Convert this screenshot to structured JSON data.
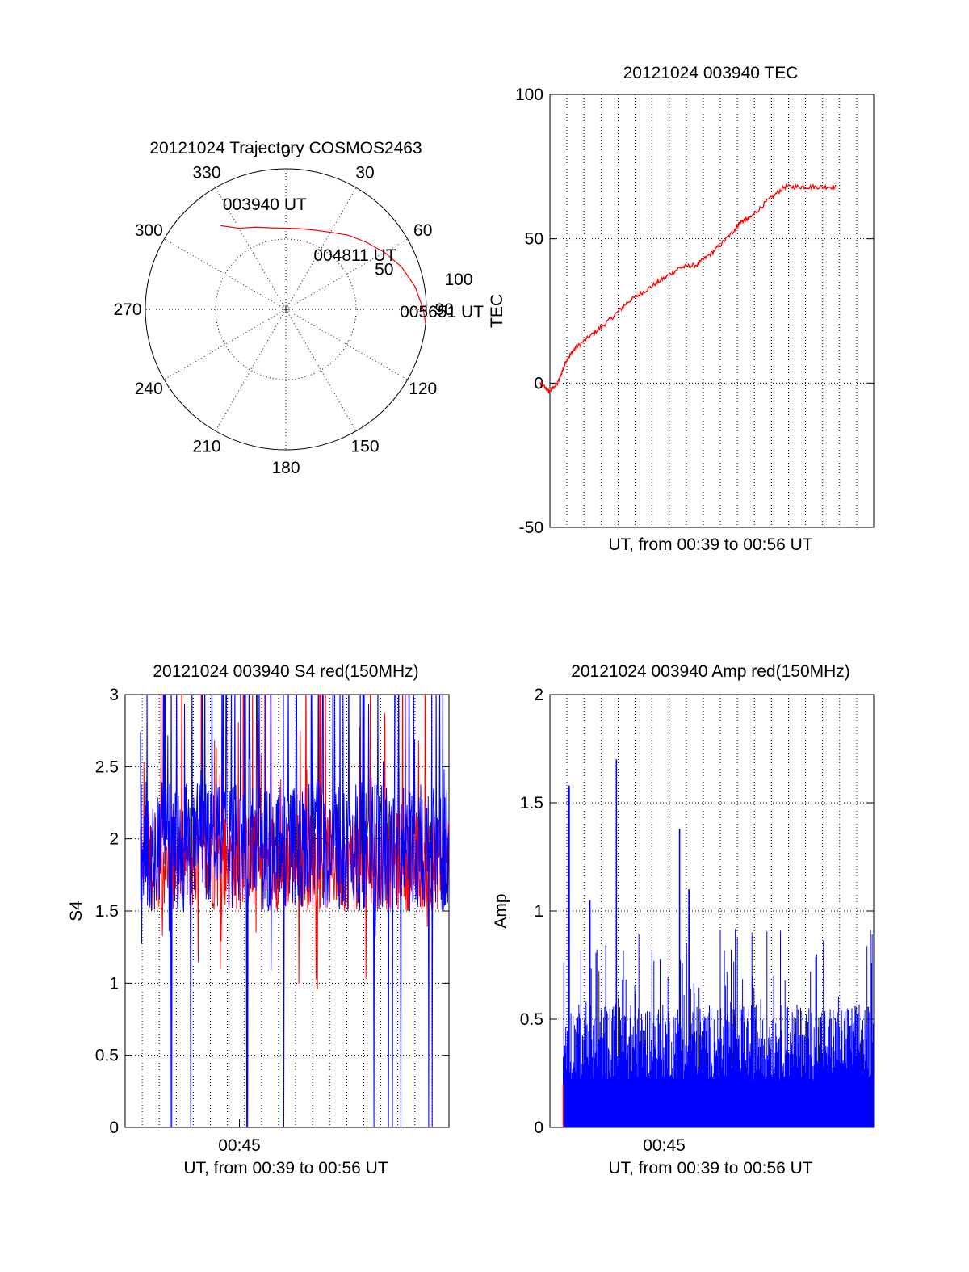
{
  "colors": {
    "red": "#ff0000",
    "blue": "#0000ff",
    "axis": "#000000"
  },
  "chart_data": [
    {
      "type": "polar",
      "title": "20121024 Trajectory COSMOS2463",
      "azimuth_labels": [
        "0",
        "30",
        "60",
        "90",
        "120",
        "150",
        "180",
        "210",
        "240",
        "270",
        "300",
        "330"
      ],
      "elevation_labels": [
        "50",
        "100"
      ],
      "trajectory": {
        "azimuth": [
          -38,
          -30,
          -20,
          -10,
          0,
          10,
          20,
          30,
          40,
          50,
          60,
          70,
          80,
          90,
          96
        ],
        "elevation": [
          22,
          30,
          34,
          37,
          38,
          37.5,
          36,
          33,
          28,
          23,
          17,
          11,
          6,
          2,
          0
        ],
        "labels": [
          {
            "text": "003940 UT",
            "azimuth": -12,
            "elevation": 25
          },
          {
            "text": "004811 UT",
            "azimuth": 55,
            "elevation": 36
          },
          {
            "text": "005651 UT",
            "azimuth": 93,
            "elevation": -10
          }
        ]
      }
    },
    {
      "type": "line",
      "title": "20121024 003940 TEC",
      "xlabel": "UT, from 00:39 to 00:56 UT",
      "ylabel": "TEC",
      "xlim": [
        0,
        17
      ],
      "ylim": [
        -50,
        100
      ],
      "yticks": [
        "100",
        "50",
        "0",
        "-50"
      ],
      "series": [
        {
          "color": "red",
          "x": [
            0,
            0.5,
            1,
            1.5,
            2,
            3,
            4,
            5,
            6,
            7,
            8,
            9,
            10,
            11,
            11.5,
            12,
            13,
            14,
            15,
            16,
            17
          ],
          "y": [
            0,
            -3,
            0,
            8,
            12,
            17,
            22,
            28,
            32,
            36,
            40,
            41,
            46,
            52,
            56,
            57,
            63,
            68,
            68,
            68,
            68
          ]
        }
      ]
    },
    {
      "type": "line",
      "title": "20121024 003940 S4 red(150MHz)",
      "xlabel": "UT, from 00:39 to 00:56 UT",
      "ylabel": "S4",
      "xlim": [
        0,
        17
      ],
      "ylim": [
        0,
        3
      ],
      "xticks": [
        "00:45"
      ],
      "yticks": [
        "3",
        "2.5",
        "2",
        "1.5",
        "1",
        "0.5",
        "0"
      ],
      "series": [
        {
          "color": "red",
          "mean": 1.85,
          "spread": 0.35
        },
        {
          "color": "blue",
          "mean": 1.95,
          "spread": 0.45
        }
      ]
    },
    {
      "type": "bar",
      "title": "20121024 003940 Amp red(150MHz)",
      "xlabel": "UT, from 00:39 to 00:56 UT",
      "ylabel": "Amp",
      "xlim": [
        0,
        17
      ],
      "ylim": [
        0,
        2
      ],
      "xticks": [
        "00:45"
      ],
      "yticks": [
        "2",
        "1.5",
        "1",
        "0.5",
        "0"
      ],
      "series": [
        {
          "color": "blue",
          "base": 0.22,
          "peaks": [
            [
              1,
              1.58
            ],
            [
              3.5,
              1.7
            ],
            [
              6.8,
              1.38
            ],
            [
              7.3,
              1.1
            ],
            [
              2.1,
              1.05
            ]
          ]
        },
        {
          "color": "red",
          "base": 0.2
        }
      ]
    }
  ]
}
